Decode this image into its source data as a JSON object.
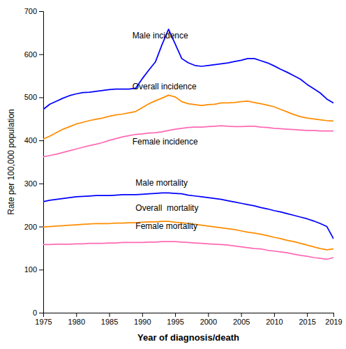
{
  "chart_data": {
    "type": "line",
    "x": [
      1975,
      1976,
      1977,
      1978,
      1979,
      1980,
      1981,
      1982,
      1983,
      1984,
      1985,
      1986,
      1987,
      1988,
      1989,
      1990,
      1991,
      1992,
      1993,
      1994,
      1995,
      1996,
      1997,
      1998,
      1999,
      2000,
      2001,
      2002,
      2003,
      2004,
      2005,
      2006,
      2007,
      2008,
      2009,
      2010,
      2011,
      2012,
      2013,
      2014,
      2015,
      2016,
      2017,
      2018,
      2019
    ],
    "series": [
      {
        "color": "#0000ff",
        "values": [
          472,
          484,
          491,
          498,
          504,
          508,
          511,
          512,
          514,
          516,
          518,
          519,
          519,
          519,
          521,
          543,
          563,
          582,
          622,
          658,
          624,
          590,
          580,
          574,
          572,
          574,
          576,
          578,
          580,
          583,
          586,
          590,
          590,
          585,
          580,
          573,
          565,
          558,
          550,
          542,
          530,
          520,
          510,
          496,
          487
        ]
      },
      {
        "color": "#ff8c00",
        "values": [
          403,
          410,
          418,
          426,
          432,
          438,
          442,
          446,
          449,
          452,
          456,
          459,
          461,
          464,
          467,
          476,
          485,
          492,
          498,
          505,
          501,
          490,
          485,
          483,
          481,
          483,
          484,
          487,
          487,
          488,
          490,
          491,
          488,
          485,
          482,
          478,
          472,
          466,
          460,
          455,
          452,
          450,
          448,
          446,
          445
        ]
      },
      {
        "color": "#ff69b4",
        "values": [
          362,
          365,
          368,
          372,
          376,
          380,
          384,
          388,
          391,
          395,
          400,
          404,
          408,
          411,
          414,
          415,
          417,
          418,
          420,
          423,
          426,
          428,
          430,
          431,
          431,
          432,
          433,
          434,
          433,
          432,
          432,
          433,
          433,
          431,
          430,
          428,
          427,
          426,
          425,
          424,
          423,
          423,
          422,
          422,
          422
        ]
      },
      {
        "color": "#0000ff",
        "values": [
          258,
          261,
          263,
          265,
          267,
          269,
          270,
          271,
          272,
          272,
          272,
          273,
          274,
          274,
          274,
          275,
          276,
          277,
          278,
          278,
          277,
          276,
          273,
          271,
          269,
          267,
          265,
          263,
          260,
          257,
          254,
          251,
          248,
          244,
          241,
          237,
          234,
          230,
          226,
          222,
          218,
          213,
          207,
          200,
          172
        ]
      },
      {
        "color": "#ff8c00",
        "values": [
          199,
          200,
          201,
          202,
          203,
          204,
          205,
          206,
          207,
          207,
          207,
          208,
          208,
          209,
          209,
          210,
          211,
          211,
          212,
          212,
          210,
          209,
          207,
          205,
          203,
          201,
          199,
          197,
          195,
          193,
          190,
          187,
          185,
          182,
          179,
          175,
          172,
          168,
          165,
          161,
          157,
          153,
          149,
          146,
          148
        ]
      },
      {
        "color": "#ff69b4",
        "values": [
          158,
          158,
          159,
          159,
          159,
          160,
          160,
          161,
          161,
          161,
          162,
          162,
          163,
          163,
          163,
          163,
          164,
          164,
          165,
          165,
          165,
          164,
          163,
          162,
          161,
          160,
          159,
          158,
          157,
          155,
          153,
          151,
          149,
          148,
          145,
          143,
          141,
          139,
          136,
          133,
          131,
          128,
          126,
          124,
          128
        ]
      }
    ],
    "xlabel": "Year of diagnosis/death",
    "ylabel": "Rate per 100,000 population",
    "annotations": [
      {
        "text": "Male incidence",
        "x": 1988.5,
        "y": 634
      },
      {
        "text": "Overall incidence",
        "x": 1988.5,
        "y": 516
      },
      {
        "text": "Female incidence",
        "x": 1988.5,
        "y": 388
      },
      {
        "text": "Male mortality",
        "x": 1989.0,
        "y": 291
      },
      {
        "text": "Overall  mortality",
        "x": 1989.0,
        "y": 234
      },
      {
        "text": "Female mortality",
        "x": 1989.0,
        "y": 192
      }
    ],
    "xlim": [
      1975,
      2019
    ],
    "xticks": [
      1975,
      1980,
      1985,
      1990,
      1995,
      2000,
      2005,
      2010,
      2015,
      2019
    ],
    "ylim": [
      0,
      700
    ],
    "yticks": [
      0,
      100,
      200,
      300,
      400,
      500,
      600,
      700
    ],
    "grid": false
  }
}
